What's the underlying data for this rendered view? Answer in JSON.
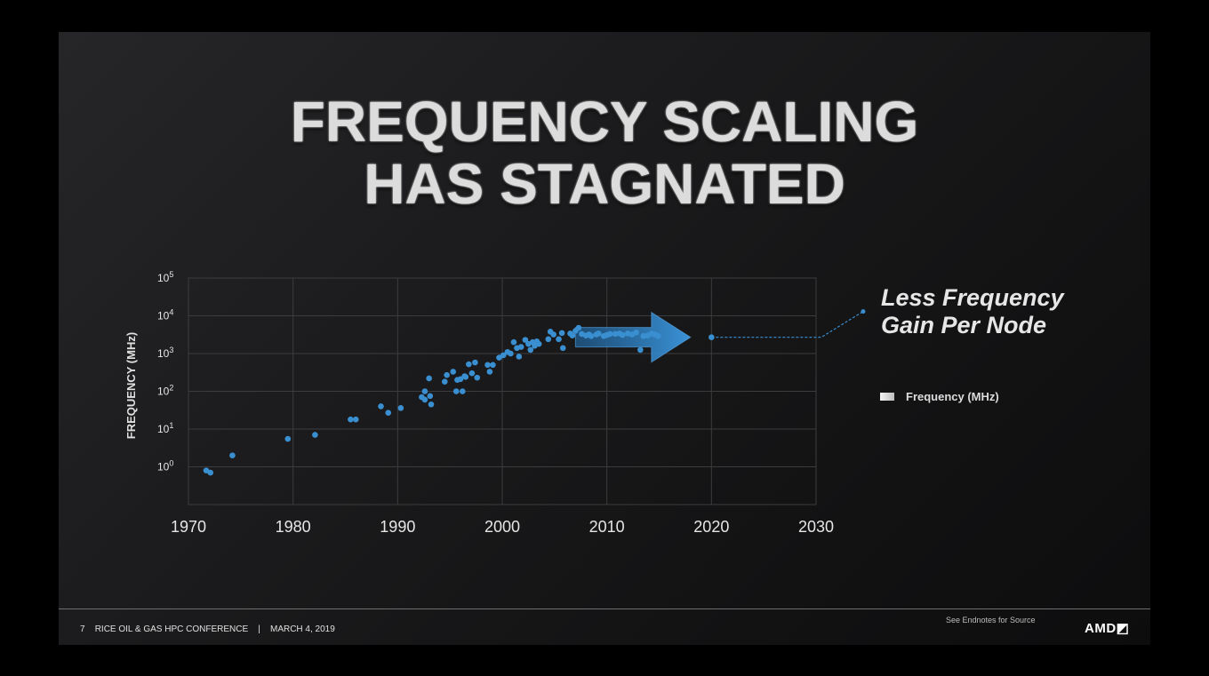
{
  "slide": {
    "title_line1": "FREQUENCY SCALING",
    "title_line2": "HAS STAGNATED",
    "annotation_line1": "Less Frequency",
    "annotation_line2": "Gain Per Node",
    "footer_page": "7",
    "footer_conference": "RICE OIL & GAS HPC CONFERENCE",
    "footer_separator": "|",
    "footer_date": "MARCH 4, 2019",
    "footer_source": "See Endnotes for Source",
    "footer_logo": "AMD◩",
    "colors": {
      "background": "#1a1a1c",
      "points": "#3a8fd1",
      "arrow": "#2f7fc0",
      "title": "#dcdcdc"
    }
  },
  "chart_data": {
    "type": "scatter",
    "title": "",
    "xlabel": "",
    "ylabel": "FREQUENCY (MHz)",
    "y_scale": "log10",
    "xlim": [
      1970,
      2030
    ],
    "ylim": [
      0,
      100000
    ],
    "x_ticks": [
      "1970",
      "1980",
      "1990",
      "2000",
      "2010",
      "2020",
      "2030"
    ],
    "y_ticks": [
      {
        "base": "10",
        "exp": "5"
      },
      {
        "base": "10",
        "exp": "4"
      },
      {
        "base": "10",
        "exp": "3"
      },
      {
        "base": "10",
        "exp": "2"
      },
      {
        "base": "10",
        "exp": "1"
      },
      {
        "base": "10",
        "exp": "0"
      }
    ],
    "grid": true,
    "legend": [
      {
        "name": "Frequency (MHz)",
        "position": "right"
      }
    ],
    "series": [
      {
        "name": "Frequency (MHz)",
        "points": [
          [
            1971.7,
            0.8
          ],
          [
            1972.1,
            0.7
          ],
          [
            1974.2,
            2
          ],
          [
            1979.5,
            5.5
          ],
          [
            1982.1,
            7
          ],
          [
            1985.5,
            18
          ],
          [
            1986.0,
            18
          ],
          [
            1988.4,
            40
          ],
          [
            1989.1,
            27
          ],
          [
            1990.3,
            36
          ],
          [
            1992.3,
            70
          ],
          [
            1992.6,
            100
          ],
          [
            1992.6,
            60
          ],
          [
            1993.0,
            220
          ],
          [
            1993.1,
            75
          ],
          [
            1993.2,
            45
          ],
          [
            1994.5,
            180
          ],
          [
            1994.7,
            270
          ],
          [
            1995.3,
            330
          ],
          [
            1995.6,
            100
          ],
          [
            1995.7,
            200
          ],
          [
            1996.0,
            210
          ],
          [
            1996.2,
            100
          ],
          [
            1996.4,
            250
          ],
          [
            1996.5,
            240
          ],
          [
            1996.8,
            520
          ],
          [
            1997.1,
            300
          ],
          [
            1997.4,
            580
          ],
          [
            1997.6,
            230
          ],
          [
            1998.6,
            500
          ],
          [
            1998.8,
            330
          ],
          [
            1999.1,
            500
          ],
          [
            1999.7,
            780
          ],
          [
            2000.1,
            900
          ],
          [
            2000.5,
            1100
          ],
          [
            2000.8,
            1000
          ],
          [
            2001.1,
            2000
          ],
          [
            2001.4,
            1400
          ],
          [
            2001.6,
            830
          ],
          [
            2001.8,
            1500
          ],
          [
            2002.2,
            2300
          ],
          [
            2002.5,
            1800
          ],
          [
            2002.7,
            1250
          ],
          [
            2002.9,
            2000
          ],
          [
            2003.1,
            1600
          ],
          [
            2003.3,
            2100
          ],
          [
            2003.5,
            1800
          ],
          [
            2004.4,
            2400
          ],
          [
            2004.6,
            3800
          ],
          [
            2004.9,
            3200
          ],
          [
            2005.4,
            2400
          ],
          [
            2005.7,
            3500
          ],
          [
            2005.8,
            1400
          ],
          [
            2006.5,
            3400
          ],
          [
            2006.7,
            3000
          ],
          [
            2007.0,
            4000
          ],
          [
            2007.3,
            4800
          ],
          [
            2007.6,
            3300
          ],
          [
            2008.0,
            3000
          ],
          [
            2008.3,
            3200
          ],
          [
            2008.5,
            2900
          ],
          [
            2009.0,
            3200
          ],
          [
            2009.2,
            3400
          ],
          [
            2009.7,
            2900
          ],
          [
            2010.0,
            3100
          ],
          [
            2010.3,
            3300
          ],
          [
            2010.8,
            3300
          ],
          [
            2011.2,
            3400
          ],
          [
            2011.5,
            3100
          ],
          [
            2012.0,
            3400
          ],
          [
            2012.4,
            3200
          ],
          [
            2012.8,
            3600
          ],
          [
            2013.2,
            1250
          ],
          [
            2013.5,
            2900
          ],
          [
            2013.9,
            3000
          ],
          [
            2014.3,
            3400
          ],
          [
            2014.6,
            3200
          ],
          [
            2014.9,
            2900
          ],
          [
            2020.0,
            2700
          ]
        ]
      }
    ],
    "trend_arrow": {
      "from": [
        2007.0,
        2700
      ],
      "to": [
        2018.0,
        2700
      ]
    },
    "projection_line": {
      "points": [
        [
          2020.0,
          2700
        ],
        [
          2030.5,
          2700
        ],
        [
          2034.5,
          13000
        ]
      ]
    }
  }
}
